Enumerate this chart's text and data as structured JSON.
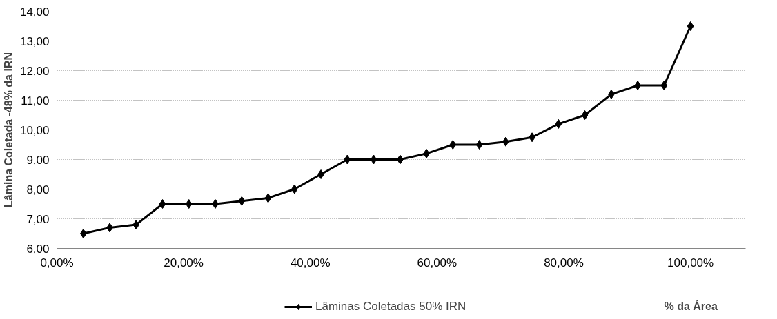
{
  "chart_data": {
    "type": "line",
    "xlabel": "% da Área",
    "ylabel": "Lâmina Coletada -48% da IRN",
    "x": [
      4.17,
      8.33,
      12.5,
      16.67,
      20.83,
      25,
      29.17,
      33.33,
      37.5,
      41.67,
      45.83,
      50,
      54.17,
      58.33,
      62.5,
      66.67,
      70.83,
      75,
      79.17,
      83.33,
      87.5,
      91.67,
      95.83,
      100
    ],
    "series": [
      {
        "name": "Lâminas Coletadas 50% IRN",
        "color": "#000000",
        "values": [
          6.5,
          6.7,
          6.8,
          7.5,
          7.5,
          7.5,
          7.6,
          7.7,
          8.0,
          8.5,
          9.0,
          9.0,
          9.0,
          9.2,
          9.5,
          9.5,
          9.6,
          9.75,
          10.2,
          10.5,
          11.2,
          11.5,
          11.5,
          13.5
        ]
      }
    ],
    "xlim": [
      0,
      108.7
    ],
    "ylim": [
      6,
      14
    ],
    "xticks": [
      {
        "value": 0,
        "label": "0,00%"
      },
      {
        "value": 20,
        "label": "20,00%"
      },
      {
        "value": 40,
        "label": "40,00%"
      },
      {
        "value": 60,
        "label": "60,00%"
      },
      {
        "value": 80,
        "label": "80,00%"
      },
      {
        "value": 100,
        "label": "100,00%"
      }
    ],
    "yticks": [
      {
        "value": 6,
        "label": "6,00"
      },
      {
        "value": 7,
        "label": "7,00"
      },
      {
        "value": 8,
        "label": "8,00"
      },
      {
        "value": 9,
        "label": "9,00"
      },
      {
        "value": 10,
        "label": "10,00"
      },
      {
        "value": 11,
        "label": "11,00"
      },
      {
        "value": 12,
        "label": "12,00"
      },
      {
        "value": 13,
        "label": "13,00"
      },
      {
        "value": 14,
        "label": "14,00"
      }
    ],
    "grid": "y",
    "legend": "bottom",
    "marker": "diamond",
    "line_style": "solid"
  }
}
